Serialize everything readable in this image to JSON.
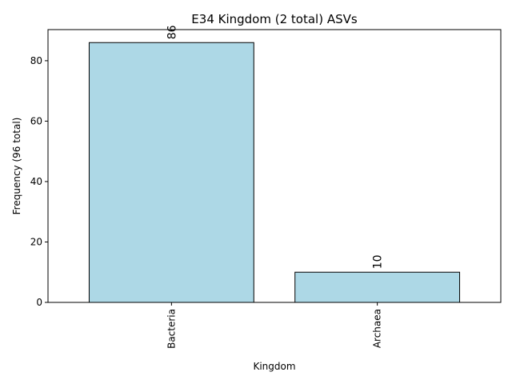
{
  "chart_data": {
    "type": "bar",
    "title": "E34 Kingdom (2 total) ASVs",
    "xlabel": "Kingdom",
    "ylabel": "Frequency (96 total)",
    "categories": [
      "Bacteria",
      "Archaea"
    ],
    "values": [
      86,
      10
    ],
    "data_labels": [
      "86",
      "10"
    ],
    "ylim": [
      0,
      90.3
    ],
    "yticks": [
      0,
      20,
      40,
      60,
      80
    ],
    "ytick_labels": [
      "0",
      "20",
      "40",
      "60",
      "80"
    ],
    "grid": false,
    "legend": "none",
    "colors": {
      "bar_fill": "#add8e6",
      "bar_edge": "#000000",
      "axes": "#000000",
      "background": "#ffffff"
    }
  }
}
